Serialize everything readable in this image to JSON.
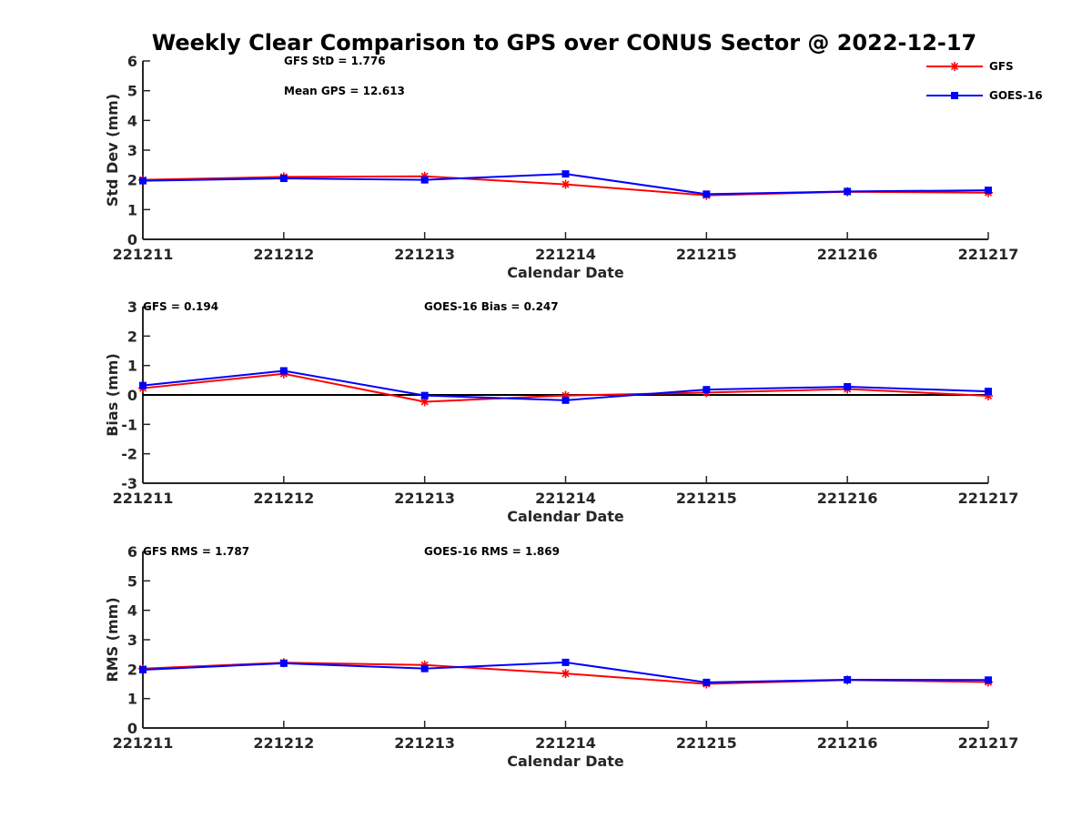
{
  "chart_data": {
    "title": "Weekly Clear Comparison to GPS over CONUS Sector @ 2022-12-17",
    "type": "line",
    "categories": [
      "221211",
      "221212",
      "221213",
      "221214",
      "221215",
      "221216",
      "221217"
    ],
    "legend": {
      "placement": "top-right",
      "entries": [
        {
          "name": "GFS",
          "color": "#ff0000",
          "marker": "asterisk"
        },
        {
          "name": "GOES-16",
          "color": "#0000ff",
          "marker": "square"
        }
      ]
    },
    "panels": [
      {
        "xlabel": "Calendar Date",
        "ylabel": "Std Dev (mm)",
        "ylim": [
          0,
          6
        ],
        "yticks": [
          "0",
          "1",
          "2",
          "3",
          "4",
          "5",
          "6"
        ],
        "zero_line": false,
        "annotations": [
          "GFS StD = 1.776",
          "Mean GPS = 12.613"
        ],
        "series": [
          {
            "name": "GFS",
            "values": [
              2.0,
              2.1,
              2.12,
              1.85,
              1.48,
              1.6,
              1.57
            ]
          },
          {
            "name": "GOES-16",
            "values": [
              1.97,
              2.05,
              2.0,
              2.2,
              1.52,
              1.61,
              1.65
            ]
          }
        ]
      },
      {
        "xlabel": "Calendar Date",
        "ylabel": "Bias (mm)",
        "ylim": [
          -3,
          3
        ],
        "yticks": [
          "-3",
          "-2",
          "-1",
          "0",
          "1",
          "2",
          "3"
        ],
        "zero_line": true,
        "annotations": [
          "GFS = 0.194",
          "GOES-16 Bias  = 0.247"
        ],
        "series": [
          {
            "name": "GFS",
            "values": [
              0.23,
              0.72,
              -0.23,
              -0.02,
              0.08,
              0.2,
              -0.03
            ]
          },
          {
            "name": "GOES-16",
            "values": [
              0.32,
              0.82,
              -0.02,
              -0.18,
              0.18,
              0.28,
              0.12
            ]
          }
        ]
      },
      {
        "xlabel": "Calendar Date",
        "ylabel": "RMS (mm)",
        "ylim": [
          0,
          6
        ],
        "yticks": [
          "0",
          "1",
          "2",
          "3",
          "4",
          "5",
          "6"
        ],
        "zero_line": false,
        "annotations": [
          "GFS RMS = 1.787",
          "GOES-16 RMS = 1.869"
        ],
        "series": [
          {
            "name": "GFS",
            "values": [
              2.02,
              2.22,
              2.14,
              1.85,
              1.5,
              1.63,
              1.56
            ]
          },
          {
            "name": "GOES-16",
            "values": [
              1.98,
              2.2,
              2.02,
              2.23,
              1.55,
              1.64,
              1.63
            ]
          }
        ]
      }
    ]
  }
}
